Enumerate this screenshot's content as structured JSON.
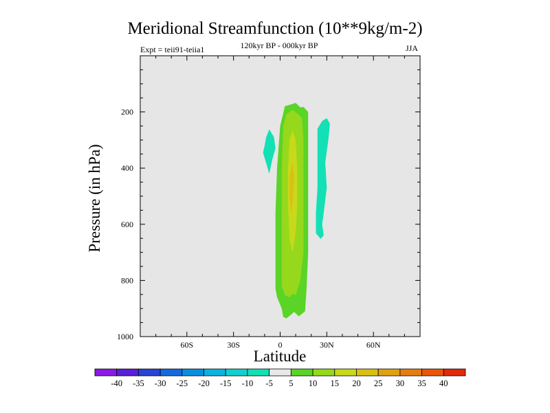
{
  "chart_data": {
    "type": "heatmap",
    "title": "Meridional Streamfunction (10**9kg/m-2)",
    "subtitle": "120kyr BP - 000kyr BP",
    "left_label": "Expt = teii91-teiia1",
    "right_label": "JJA",
    "xlabel": "Latitude",
    "ylabel": "Pressure (in hPa)",
    "xlim": [
      -90,
      90
    ],
    "ylim": [
      1000,
      0
    ],
    "x_tick_values": [
      -60,
      -30,
      0,
      30,
      60
    ],
    "x_tick_labels": [
      "60S",
      "30S",
      "0",
      "30N",
      "60N"
    ],
    "y_tick_values": [
      200,
      400,
      600,
      800,
      1000
    ],
    "y_tick_labels": [
      "200",
      "400",
      "600",
      "800",
      "1000"
    ],
    "plot_background": "#e6e6e6",
    "colorbar": {
      "labels": [
        "-40",
        "-35",
        "-30",
        "-25",
        "-20",
        "-15",
        "-10",
        "-5",
        "5",
        "10",
        "15",
        "20",
        "25",
        "30",
        "35",
        "40"
      ],
      "colors": [
        "#8b1ae6",
        "#5a1fd8",
        "#2844d6",
        "#1668e0",
        "#0a8fe0",
        "#0db3de",
        "#13cfcf",
        "#14e0b5",
        "#e8e8e8",
        "#5ad426",
        "#96d81c",
        "#c8d81a",
        "#d9c014",
        "#e0a212",
        "#e57e10",
        "#e8560c",
        "#e02a0a"
      ]
    },
    "contours": [
      {
        "level": "-10 to -5",
        "color": "#14e0b5",
        "points": [
          [
            -7,
            262
          ],
          [
            -4,
            290
          ],
          [
            -3,
            330
          ],
          [
            -5,
            368
          ],
          [
            -7,
            420
          ],
          [
            -9,
            382
          ],
          [
            -11,
            345
          ],
          [
            -10,
            320
          ],
          [
            -9,
            290
          ]
        ]
      },
      {
        "level": "-10 to -5",
        "color": "#14e0b5",
        "points": [
          [
            30,
            222
          ],
          [
            32,
            242
          ],
          [
            31,
            300
          ],
          [
            29,
            380
          ],
          [
            30,
            470
          ],
          [
            28,
            560
          ],
          [
            27,
            600
          ],
          [
            28,
            640
          ],
          [
            26,
            652
          ],
          [
            23,
            632
          ],
          [
            23,
            560
          ],
          [
            24,
            470
          ],
          [
            24,
            370
          ],
          [
            24,
            260
          ],
          [
            27,
            232
          ]
        ]
      },
      {
        "level": "5 to 10",
        "color": "#5ad426",
        "points": [
          [
            10,
            168
          ],
          [
            13,
            184
          ],
          [
            15,
            182
          ],
          [
            18,
            200
          ],
          [
            18,
            270
          ],
          [
            18,
            400
          ],
          [
            18,
            560
          ],
          [
            18,
            700
          ],
          [
            17,
            830
          ],
          [
            16,
            910
          ],
          [
            12,
            928
          ],
          [
            9,
            912
          ],
          [
            7,
            922
          ],
          [
            4,
            935
          ],
          [
            2,
            930
          ],
          [
            1,
            900
          ],
          [
            -2,
            860
          ],
          [
            -3,
            830
          ],
          [
            -3,
            700
          ],
          [
            -3,
            560
          ],
          [
            -2,
            400
          ],
          [
            0,
            250
          ],
          [
            2,
            205
          ],
          [
            3,
            180
          ],
          [
            6,
            175
          ]
        ]
      },
      {
        "level": "10 to 15",
        "color": "#96d81c",
        "points": [
          [
            8,
            193
          ],
          [
            11,
            205
          ],
          [
            14,
            222
          ],
          [
            15,
            300
          ],
          [
            15,
            400
          ],
          [
            15,
            560
          ],
          [
            15,
            700
          ],
          [
            13,
            800
          ],
          [
            10,
            852
          ],
          [
            8,
            848
          ],
          [
            6,
            860
          ],
          [
            3,
            852
          ],
          [
            1,
            820
          ],
          [
            1,
            700
          ],
          [
            1,
            560
          ],
          [
            1,
            400
          ],
          [
            2,
            250
          ],
          [
            4,
            208
          ]
        ]
      },
      {
        "level": "15 to 20",
        "color": "#c8d81a",
        "points": [
          [
            8,
            265
          ],
          [
            10,
            300
          ],
          [
            11,
            400
          ],
          [
            11,
            530
          ],
          [
            10,
            630
          ],
          [
            8,
            700
          ],
          [
            6,
            655
          ],
          [
            5,
            530
          ],
          [
            5,
            400
          ],
          [
            6,
            300
          ]
        ]
      },
      {
        "level": "20 to 25",
        "color": "#d9c014",
        "points": [
          [
            8,
            380
          ],
          [
            9,
            430
          ],
          [
            8,
            520
          ],
          [
            7,
            560
          ],
          [
            6,
            500
          ],
          [
            6,
            430
          ]
        ]
      }
    ]
  }
}
